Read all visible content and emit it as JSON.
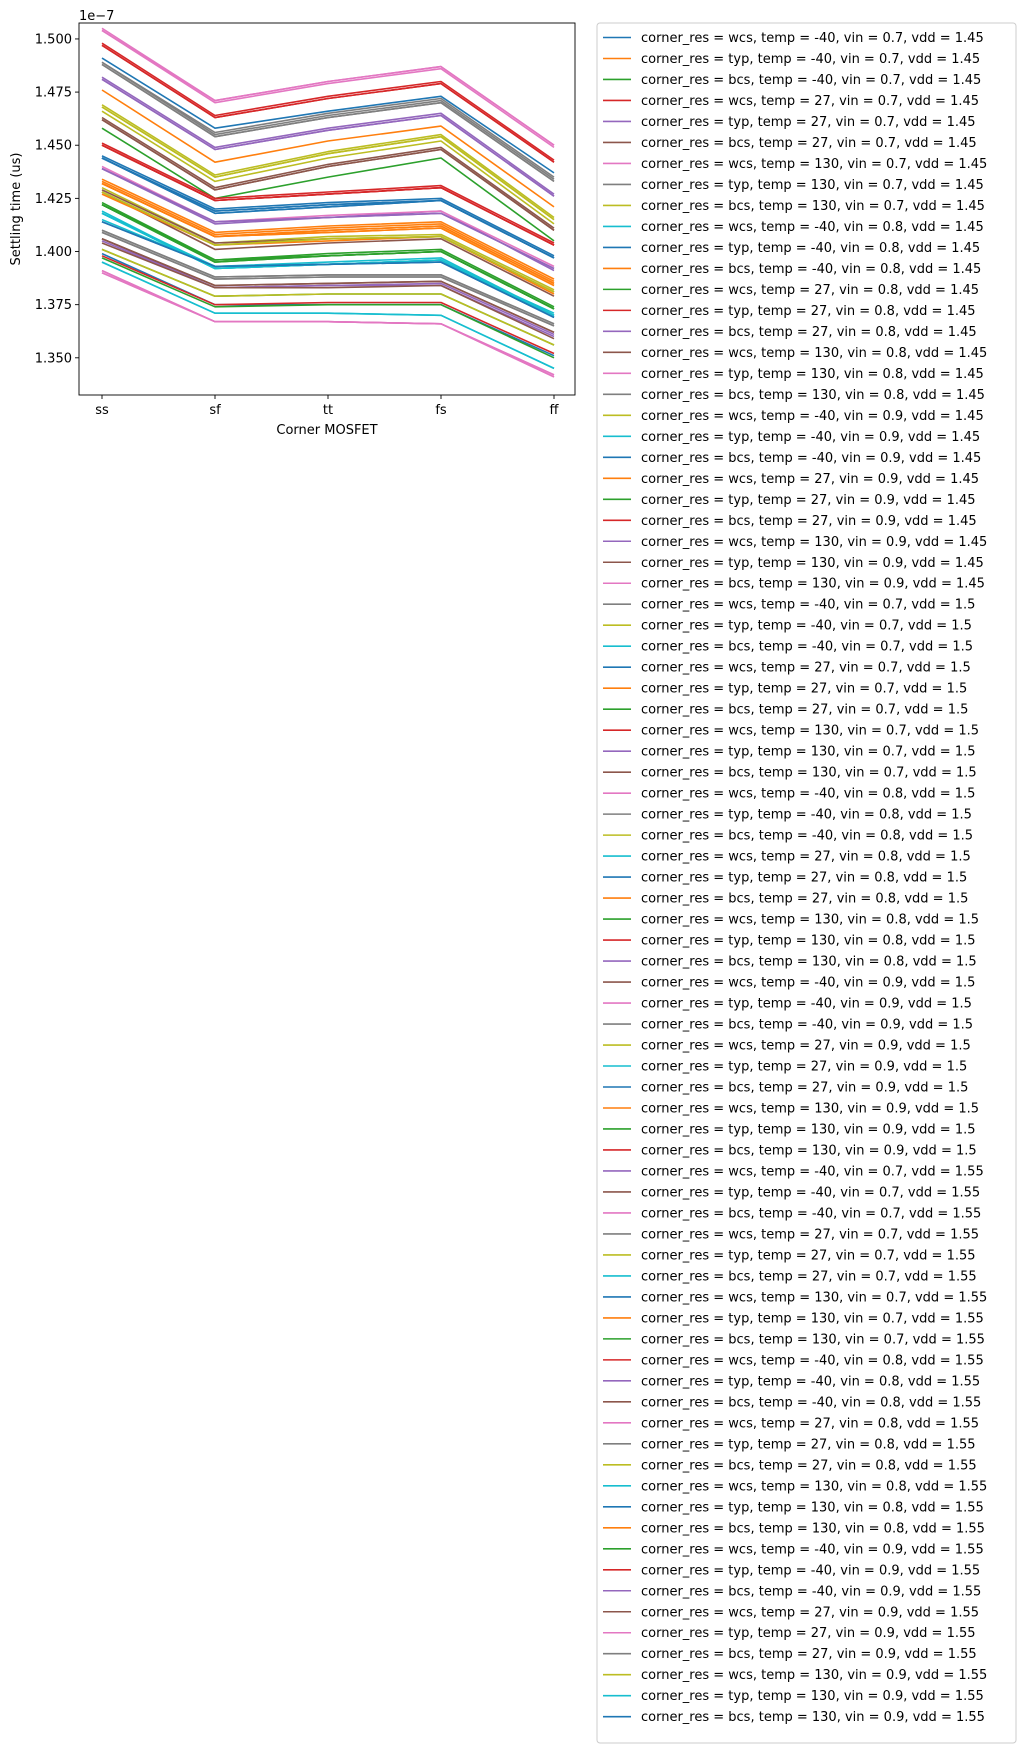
{
  "chart_data": {
    "type": "line",
    "title": "",
    "xlabel": "Corner MOSFET",
    "ylabel": "Settling time (us)",
    "y_offset_text": "1e−7",
    "categories": [
      "ss",
      "sf",
      "tt",
      "fs",
      "ff"
    ],
    "ylim": [
      1.3325,
      1.5075
    ],
    "yticks": [
      1.35,
      1.375,
      1.4,
      1.425,
      1.45,
      1.475,
      1.5
    ],
    "ytick_labels": [
      "1.350",
      "1.375",
      "1.400",
      "1.425",
      "1.450",
      "1.475",
      "1.500"
    ],
    "grid": false,
    "legend_position": "outside right, upper",
    "palette": [
      "#1f77b4",
      "#ff7f0e",
      "#2ca02c",
      "#d62728",
      "#9467bd",
      "#8c564b",
      "#e377c2",
      "#7f7f7f",
      "#bcbd22",
      "#17becf"
    ],
    "series": [
      {
        "name": "corner_res = wcs, temp = -40, vin = 0.7, vdd = 1.45",
        "values": [
          1.491,
          1.458,
          1.466,
          1.473,
          1.437
        ]
      },
      {
        "name": "corner_res = typ, temp = -40, vin = 0.7, vdd = 1.45",
        "values": [
          1.476,
          1.442,
          1.452,
          1.459,
          1.421
        ]
      },
      {
        "name": "corner_res = bcs, temp = -40, vin = 0.7, vdd = 1.45",
        "values": [
          1.458,
          1.425,
          1.435,
          1.444,
          1.405
        ]
      },
      {
        "name": "corner_res = wcs, temp = 27, vin = 0.7, vdd = 1.45",
        "values": [
          1.498,
          1.464,
          1.473,
          1.48,
          1.443
        ]
      },
      {
        "name": "corner_res = typ, temp = 27, vin = 0.7, vdd = 1.45",
        "values": [
          1.482,
          1.449,
          1.458,
          1.465,
          1.427
        ]
      },
      {
        "name": "corner_res = bcs, temp = 27, vin = 0.7, vdd = 1.45",
        "values": [
          1.463,
          1.43,
          1.441,
          1.449,
          1.411
        ]
      },
      {
        "name": "corner_res = wcs, temp = 130, vin = 0.7, vdd = 1.45",
        "values": [
          1.505,
          1.471,
          1.48,
          1.487,
          1.45
        ]
      },
      {
        "name": "corner_res = typ, temp = 130, vin = 0.7, vdd = 1.45",
        "values": [
          1.489,
          1.455,
          1.464,
          1.471,
          1.434
        ]
      },
      {
        "name": "corner_res = bcs, temp = 130, vin = 0.7, vdd = 1.45",
        "values": [
          1.469,
          1.436,
          1.447,
          1.455,
          1.416
        ]
      },
      {
        "name": "corner_res = wcs, temp = -40, vin = 0.8, vdd = 1.45",
        "values": [
          1.419,
          1.392,
          1.394,
          1.395,
          1.371
        ]
      },
      {
        "name": "corner_res = typ, temp = -40, vin = 0.8, vdd = 1.45",
        "values": [
          1.445,
          1.42,
          1.423,
          1.425,
          1.398
        ]
      },
      {
        "name": "corner_res = bcs, temp = -40, vin = 0.8, vdd = 1.45",
        "values": [
          1.433,
          1.408,
          1.411,
          1.413,
          1.386
        ]
      },
      {
        "name": "corner_res = wcs, temp = 27, vin = 0.8, vdd = 1.45",
        "values": [
          1.423,
          1.396,
          1.399,
          1.401,
          1.374
        ]
      },
      {
        "name": "corner_res = typ, temp = 27, vin = 0.8, vdd = 1.45",
        "values": [
          1.451,
          1.425,
          1.428,
          1.431,
          1.404
        ]
      },
      {
        "name": "corner_res = bcs, temp = 27, vin = 0.8, vdd = 1.45",
        "values": [
          1.439,
          1.413,
          1.416,
          1.419,
          1.391
        ]
      },
      {
        "name": "corner_res = wcs, temp = 130, vin = 0.8, vdd = 1.45",
        "values": [
          1.428,
          1.401,
          1.404,
          1.406,
          1.379
        ]
      },
      {
        "name": "corner_res = typ, temp = 130, vin = 0.8, vdd = 1.45",
        "values": [
          1.44,
          1.414,
          1.417,
          1.419,
          1.393
        ]
      },
      {
        "name": "corner_res = bcs, temp = 130, vin = 0.8, vdd = 1.45",
        "values": [
          1.41,
          1.388,
          1.389,
          1.389,
          1.366
        ]
      },
      {
        "name": "corner_res = wcs, temp = -40, vin = 0.9, vdd = 1.45",
        "values": [
          1.43,
          1.404,
          1.407,
          1.408,
          1.382
        ]
      },
      {
        "name": "corner_res = typ, temp = -40, vin = 0.9, vdd = 1.45",
        "values": [
          1.415,
          1.393,
          1.394,
          1.396,
          1.369
        ]
      },
      {
        "name": "corner_res = bcs, temp = -40, vin = 0.9, vdd = 1.45",
        "values": [
          1.399,
          1.375,
          1.375,
          1.375,
          1.351
        ]
      },
      {
        "name": "corner_res = wcs, temp = 27, vin = 0.9, vdd = 1.45",
        "values": [
          1.427,
          1.403,
          1.405,
          1.407,
          1.38
        ]
      },
      {
        "name": "corner_res = typ, temp = 27, vin = 0.9, vdd = 1.45",
        "values": [
          1.401,
          1.379,
          1.38,
          1.38,
          1.356
        ]
      },
      {
        "name": "corner_res = bcs, temp = 27, vin = 0.9, vdd = 1.45",
        "values": [
          1.398,
          1.375,
          1.376,
          1.376,
          1.352
        ]
      },
      {
        "name": "corner_res = wcs, temp = 130, vin = 0.9, vdd = 1.45",
        "values": [
          1.406,
          1.383,
          1.384,
          1.384,
          1.36
        ]
      },
      {
        "name": "corner_res = typ, temp = 130, vin = 0.9, vdd = 1.45",
        "values": [
          1.429,
          1.404,
          1.406,
          1.407,
          1.381
        ]
      },
      {
        "name": "corner_res = bcs, temp = 130, vin = 0.9, vdd = 1.45",
        "values": [
          1.391,
          1.367,
          1.367,
          1.366,
          1.341
        ]
      },
      {
        "name": "corner_res = wcs, temp = -40, vin = 0.7, vdd = 1.5",
        "values": [
          1.489,
          1.456,
          1.465,
          1.472,
          1.435
        ]
      },
      {
        "name": "corner_res = typ, temp = -40, vin = 0.7, vdd = 1.5",
        "values": [
          1.466,
          1.433,
          1.444,
          1.452,
          1.413
        ]
      },
      {
        "name": "corner_res = bcs, temp = -40, vin = 0.7, vdd = 1.5",
        "values": [
          1.395,
          1.371,
          1.371,
          1.37,
          1.345
        ]
      },
      {
        "name": "corner_res = wcs, temp = 27, vin = 0.7, vdd = 1.5",
        "values": [
          1.414,
          1.393,
          1.394,
          1.395,
          1.369
        ]
      },
      {
        "name": "corner_res = typ, temp = 27, vin = 0.7, vdd = 1.5",
        "values": [
          1.434,
          1.409,
          1.412,
          1.414,
          1.387
        ]
      },
      {
        "name": "corner_res = bcs, temp = 27, vin = 0.7, vdd = 1.5",
        "values": [
          1.397,
          1.374,
          1.375,
          1.375,
          1.35
        ]
      },
      {
        "name": "corner_res = wcs, temp = 130, vin = 0.7, vdd = 1.5",
        "values": [
          1.45,
          1.424,
          1.427,
          1.43,
          1.403
        ]
      },
      {
        "name": "corner_res = typ, temp = 130, vin = 0.7, vdd = 1.5",
        "values": [
          1.405,
          1.383,
          1.384,
          1.385,
          1.361
        ]
      },
      {
        "name": "corner_res = bcs, temp = 130, vin = 0.7, vdd = 1.5",
        "values": [
          1.404,
          1.383,
          1.383,
          1.384,
          1.359
        ]
      },
      {
        "name": "corner_res = wcs, temp = -40, vin = 0.8, vdd = 1.5",
        "values": [
          1.504,
          1.47,
          1.479,
          1.486,
          1.449
        ]
      },
      {
        "name": "corner_res = typ, temp = -40, vin = 0.8, vdd = 1.5",
        "values": [
          1.488,
          1.454,
          1.463,
          1.47,
          1.433
        ]
      },
      {
        "name": "corner_res = bcs, temp = -40, vin = 0.8, vdd = 1.5",
        "values": [
          1.468,
          1.435,
          1.446,
          1.454,
          1.415
        ]
      },
      {
        "name": "corner_res = wcs, temp = 27, vin = 0.8, vdd = 1.5",
        "values": [
          1.418,
          1.393,
          1.395,
          1.397,
          1.37
        ]
      },
      {
        "name": "corner_res = typ, temp = 27, vin = 0.8, vdd = 1.5",
        "values": [
          1.444,
          1.419,
          1.422,
          1.424,
          1.397
        ]
      },
      {
        "name": "corner_res = bcs, temp = 27, vin = 0.8, vdd = 1.5",
        "values": [
          1.432,
          1.407,
          1.41,
          1.412,
          1.385
        ]
      },
      {
        "name": "corner_res = wcs, temp = 130, vin = 0.8, vdd = 1.5",
        "values": [
          1.422,
          1.395,
          1.398,
          1.4,
          1.373
        ]
      },
      {
        "name": "corner_res = typ, temp = 130, vin = 0.8, vdd = 1.5",
        "values": [
          1.497,
          1.463,
          1.472,
          1.479,
          1.442
        ]
      },
      {
        "name": "corner_res = bcs, temp = 130, vin = 0.8, vdd = 1.5",
        "values": [
          1.481,
          1.448,
          1.457,
          1.464,
          1.426
        ]
      },
      {
        "name": "corner_res = wcs, temp = -40, vin = 0.9, vdd = 1.5",
        "values": [
          1.462,
          1.429,
          1.44,
          1.448,
          1.41
        ]
      },
      {
        "name": "corner_res = typ, temp = -40, vin = 0.9, vdd = 1.5",
        "values": [
          1.39,
          1.367,
          1.367,
          1.366,
          1.342
        ]
      },
      {
        "name": "corner_res = bcs, temp = -40, vin = 0.9, vdd = 1.5",
        "values": [
          1.409,
          1.387,
          1.388,
          1.388,
          1.365
        ]
      },
      {
        "name": "corner_res = wcs, temp = 27, vin = 0.9, vdd = 1.5",
        "values": [
          1.428,
          1.403,
          1.406,
          1.407,
          1.381
        ]
      },
      {
        "name": "corner_res = typ, temp = 27, vin = 0.9, vdd = 1.5",
        "values": [
          1.418,
          1.392,
          1.394,
          1.396,
          1.37
        ]
      },
      {
        "name": "corner_res = bcs, temp = 27, vin = 0.9, vdd = 1.5",
        "values": [
          1.444,
          1.418,
          1.421,
          1.424,
          1.397
        ]
      },
      {
        "name": "corner_res = wcs, temp = 130, vin = 0.9, vdd = 1.5",
        "values": [
          1.432,
          1.407,
          1.409,
          1.411,
          1.384
        ]
      },
      {
        "name": "corner_res = typ, temp = 130, vin = 0.9, vdd = 1.5",
        "values": [
          1.422,
          1.396,
          1.398,
          1.4,
          1.373
        ]
      },
      {
        "name": "corner_res = bcs, temp = 130, vin = 0.9, vdd = 1.5",
        "values": [
          1.45,
          1.424,
          1.427,
          1.43,
          1.403
        ]
      },
      {
        "name": "corner_res = wcs, temp = -40, vin = 0.7, vdd = 1.55",
        "values": [
          1.439,
          1.414,
          1.416,
          1.418,
          1.392
        ]
      },
      {
        "name": "corner_res = typ, temp = -40, vin = 0.7, vdd = 1.55",
        "values": [
          1.406,
          1.384,
          1.385,
          1.386,
          1.362
        ]
      },
      {
        "name": "corner_res = bcs, temp = -40, vin = 0.7, vdd = 1.55",
        "values": [
          1.504,
          1.471,
          1.48,
          1.487,
          1.45
        ]
      },
      {
        "name": "corner_res = wcs, temp = 27, vin = 0.7, vdd = 1.55",
        "values": [
          1.488,
          1.454,
          1.463,
          1.47,
          1.433
        ]
      },
      {
        "name": "corner_res = typ, temp = 27, vin = 0.7, vdd = 1.55",
        "values": [
          1.468,
          1.435,
          1.446,
          1.454,
          1.415
        ]
      },
      {
        "name": "corner_res = bcs, temp = 27, vin = 0.7, vdd = 1.55",
        "values": [
          1.418,
          1.392,
          1.394,
          1.396,
          1.37
        ]
      },
      {
        "name": "corner_res = wcs, temp = 130, vin = 0.7, vdd = 1.55",
        "values": [
          1.444,
          1.419,
          1.422,
          1.424,
          1.397
        ]
      },
      {
        "name": "corner_res = typ, temp = 130, vin = 0.7, vdd = 1.55",
        "values": [
          1.432,
          1.407,
          1.41,
          1.412,
          1.385
        ]
      },
      {
        "name": "corner_res = bcs, temp = 130, vin = 0.7, vdd = 1.55",
        "values": [
          1.422,
          1.395,
          1.398,
          1.4,
          1.373
        ]
      },
      {
        "name": "corner_res = wcs, temp = -40, vin = 0.8, vdd = 1.55",
        "values": [
          1.497,
          1.463,
          1.472,
          1.479,
          1.442
        ]
      },
      {
        "name": "corner_res = typ, temp = -40, vin = 0.8, vdd = 1.55",
        "values": [
          1.481,
          1.448,
          1.457,
          1.464,
          1.426
        ]
      },
      {
        "name": "corner_res = bcs, temp = -40, vin = 0.8, vdd = 1.55",
        "values": [
          1.462,
          1.429,
          1.44,
          1.448,
          1.41
        ]
      },
      {
        "name": "corner_res = wcs, temp = 27, vin = 0.8, vdd = 1.55",
        "values": [
          1.39,
          1.367,
          1.367,
          1.366,
          1.342
        ]
      },
      {
        "name": "corner_res = typ, temp = 27, vin = 0.8, vdd = 1.55",
        "values": [
          1.409,
          1.387,
          1.388,
          1.388,
          1.365
        ]
      },
      {
        "name": "corner_res = bcs, temp = 27, vin = 0.8, vdd = 1.55",
        "values": [
          1.428,
          1.403,
          1.406,
          1.407,
          1.381
        ]
      },
      {
        "name": "corner_res = wcs, temp = 130, vin = 0.8, vdd = 1.55",
        "values": [
          1.418,
          1.392,
          1.394,
          1.396,
          1.37
        ]
      },
      {
        "name": "corner_res = typ, temp = 130, vin = 0.8, vdd = 1.55",
        "values": [
          1.444,
          1.418,
          1.421,
          1.424,
          1.397
        ]
      },
      {
        "name": "corner_res = bcs, temp = 130, vin = 0.8, vdd = 1.55",
        "values": [
          1.432,
          1.407,
          1.409,
          1.411,
          1.384
        ]
      },
      {
        "name": "corner_res = wcs, temp = -40, vin = 0.9, vdd = 1.55",
        "values": [
          1.422,
          1.396,
          1.398,
          1.4,
          1.373
        ]
      },
      {
        "name": "corner_res = typ, temp = -40, vin = 0.9, vdd = 1.55",
        "values": [
          1.45,
          1.424,
          1.427,
          1.43,
          1.403
        ]
      },
      {
        "name": "corner_res = bcs, temp = -40, vin = 0.9, vdd = 1.55",
        "values": [
          1.439,
          1.414,
          1.416,
          1.418,
          1.392
        ]
      },
      {
        "name": "corner_res = wcs, temp = 27, vin = 0.9, vdd = 1.55",
        "values": [
          1.406,
          1.384,
          1.385,
          1.386,
          1.362
        ]
      },
      {
        "name": "corner_res = typ, temp = 27, vin = 0.9, vdd = 1.55",
        "values": [
          1.391,
          1.367,
          1.367,
          1.366,
          1.341
        ]
      },
      {
        "name": "corner_res = bcs, temp = 27, vin = 0.9, vdd = 1.55",
        "values": [
          1.41,
          1.388,
          1.389,
          1.389,
          1.366
        ]
      },
      {
        "name": "corner_res = wcs, temp = 130, vin = 0.9, vdd = 1.55",
        "values": [
          1.401,
          1.379,
          1.38,
          1.38,
          1.356
        ]
      },
      {
        "name": "corner_res = typ, temp = 130, vin = 0.9, vdd = 1.55",
        "values": [
          1.395,
          1.371,
          1.371,
          1.37,
          1.345
        ]
      },
      {
        "name": "corner_res = bcs, temp = 130, vin = 0.9, vdd = 1.55",
        "values": [
          1.414,
          1.393,
          1.394,
          1.395,
          1.369
        ]
      }
    ]
  }
}
